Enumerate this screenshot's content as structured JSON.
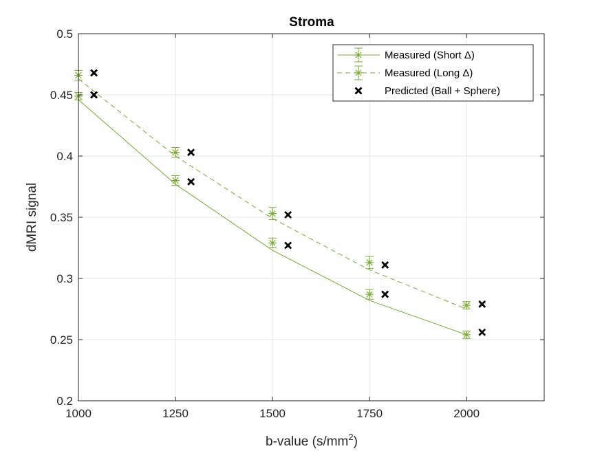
{
  "chart_data": {
    "type": "line",
    "title": "Stroma",
    "xlabel": "b-value (s/mm",
    "xlabel_sup": "2",
    "xlabel_close": ")",
    "ylabel": "dMRI signal",
    "xlim": [
      1000,
      2200
    ],
    "ylim": [
      0.2,
      0.5
    ],
    "x_ticks": [
      "1000",
      "1250",
      "1500",
      "1750",
      "2000"
    ],
    "y_ticks": [
      "0.2",
      "0.25",
      "0.3",
      "0.35",
      "0.4",
      "0.45",
      "0.5"
    ],
    "grid": true,
    "legend_position": "top-right",
    "x": [
      1000,
      1250,
      1500,
      1750,
      2000
    ],
    "series": [
      {
        "name": "Measured (Short Δ)",
        "style": "solid",
        "marker": "asterisk",
        "color": "#77ac30",
        "y": [
          0.449,
          0.38,
          0.329,
          0.287,
          0.254
        ],
        "err": [
          0.003,
          0.004,
          0.004,
          0.004,
          0.003
        ],
        "fit": [
          0.446,
          0.377,
          0.323,
          0.282,
          0.254
        ]
      },
      {
        "name": "Measured (Long Δ)",
        "style": "dashed",
        "marker": "asterisk",
        "color": "#77ac30",
        "y": [
          0.466,
          0.403,
          0.353,
          0.313,
          0.278
        ],
        "err": [
          0.004,
          0.004,
          0.005,
          0.005,
          0.003
        ],
        "fit": [
          0.463,
          0.4,
          0.349,
          0.307,
          0.275
        ]
      },
      {
        "name": "Predicted (Ball + Sphere)",
        "style": "none",
        "marker": "x",
        "color": "#000000",
        "x": [
          1040,
          1290,
          1540,
          1790,
          2040,
          1040,
          1290,
          1540,
          1790,
          2040
        ],
        "y": [
          0.45,
          0.379,
          0.327,
          0.287,
          0.256,
          0.468,
          0.403,
          0.352,
          0.311,
          0.279
        ]
      }
    ]
  }
}
